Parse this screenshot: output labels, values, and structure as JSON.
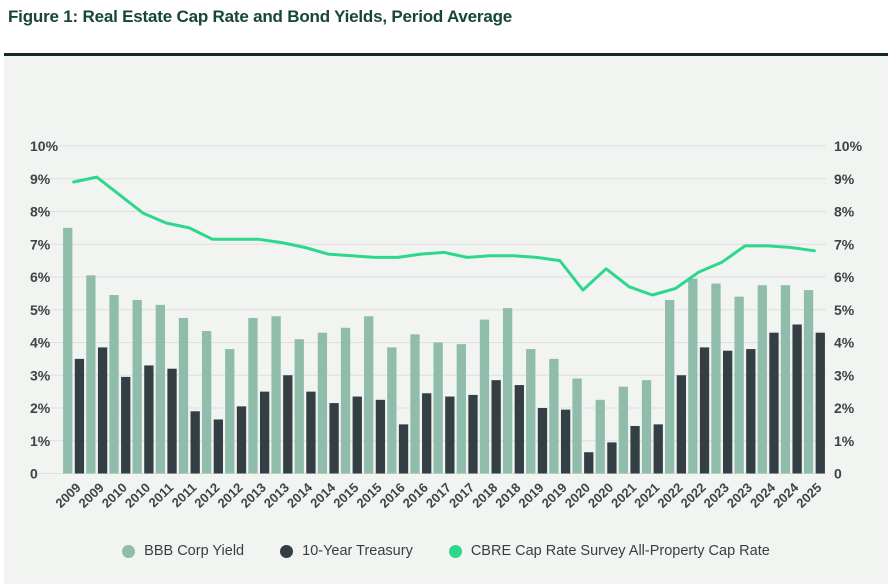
{
  "chart_data": {
    "type": "bar",
    "title": "Figure 1: Real Estate Cap Rate and Bond Yields, Period Average",
    "xlabel": "",
    "ylabel": "",
    "ylim": [
      0,
      10
    ],
    "grid": true,
    "legend_position": "bottom",
    "y_axis_sides": [
      "left",
      "right"
    ],
    "ytick_labels_top_to_bottom": [
      "10%",
      "9%",
      "8%",
      "7%",
      "6%",
      "5%",
      "4%",
      "3%",
      "2%",
      "1%",
      "0"
    ],
    "categories": [
      "2009",
      "2009",
      "2010",
      "2010",
      "2011",
      "2011",
      "2012",
      "2012",
      "2013",
      "2013",
      "2014",
      "2014",
      "2015",
      "2015",
      "2016",
      "2016",
      "2017",
      "2017",
      "2018",
      "2018",
      "2019",
      "2019",
      "2020",
      "2020",
      "2021",
      "2021",
      "2022",
      "2022",
      "2023",
      "2023",
      "2024",
      "2024",
      "2025"
    ],
    "series": [
      {
        "name": "BBB Corp Yield",
        "kind": "bar",
        "color": "#8fbcab",
        "values": [
          7.5,
          6.05,
          5.45,
          5.3,
          5.15,
          4.75,
          4.35,
          3.8,
          4.75,
          4.8,
          4.1,
          4.3,
          4.45,
          4.8,
          3.85,
          4.25,
          4.0,
          3.95,
          4.7,
          5.05,
          3.8,
          3.5,
          2.9,
          2.25,
          2.65,
          2.85,
          5.3,
          5.95,
          5.8,
          5.4,
          5.75,
          5.75,
          5.6
        ]
      },
      {
        "name": "10-Year Treasury",
        "kind": "bar",
        "color": "#333f44",
        "values": [
          3.5,
          3.85,
          2.95,
          3.3,
          3.2,
          1.9,
          1.65,
          2.05,
          2.5,
          3.0,
          2.5,
          2.15,
          2.35,
          2.25,
          1.5,
          2.45,
          2.35,
          2.4,
          2.85,
          2.7,
          2.0,
          1.95,
          0.65,
          0.95,
          1.45,
          1.5,
          3.0,
          3.85,
          3.75,
          3.8,
          4.3,
          4.55,
          4.3
        ]
      },
      {
        "name": "CBRE Cap Rate Survey All-Property Cap Rate",
        "kind": "line",
        "color": "#2ed88a",
        "values": [
          8.9,
          9.05,
          8.5,
          7.95,
          7.65,
          7.5,
          7.15,
          7.15,
          7.15,
          7.05,
          6.9,
          6.7,
          6.65,
          6.6,
          6.6,
          6.7,
          6.75,
          6.6,
          6.65,
          6.65,
          6.6,
          6.5,
          5.6,
          6.25,
          5.7,
          5.45,
          5.65,
          6.15,
          6.45,
          6.95,
          6.95,
          6.9,
          6.8
        ]
      }
    ],
    "colors": {
      "title": "#17443b",
      "panel_background": "#f2f4f2",
      "panel_top_border": "#152728",
      "gridline": "#dcdfdd",
      "axis_text": "#3d4442",
      "legend_text": "#3a3f3e"
    }
  }
}
